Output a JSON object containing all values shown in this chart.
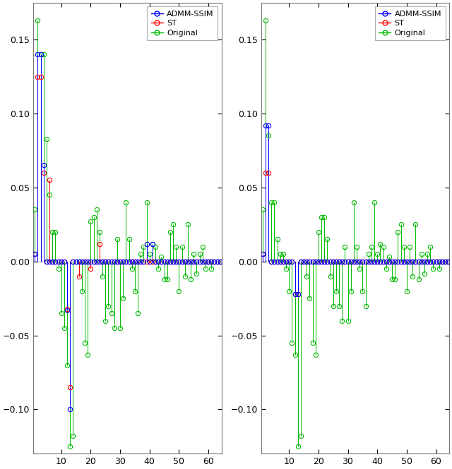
{
  "n_points": 64,
  "xlim": [
    0.5,
    64.5
  ],
  "ylim": [
    -0.13,
    0.175
  ],
  "xticks": [
    10,
    20,
    30,
    40,
    50,
    60
  ],
  "yticks": [
    -0.1,
    -0.05,
    0,
    0.05,
    0.1,
    0.15
  ],
  "colors": {
    "admm": "#0000FF",
    "st": "#FF0000",
    "original": "#00BB00"
  },
  "legend_labels": [
    "ADMM-SSIM",
    "ST",
    "Original"
  ],
  "subplot1": {
    "original": [
      0.035,
      0.163,
      0.14,
      0.14,
      0.083,
      0.045,
      0.02,
      0.02,
      -0.005,
      -0.035,
      -0.045,
      -0.07,
      -0.125,
      -0.118,
      0.0,
      0.0,
      -0.02,
      -0.055,
      -0.063,
      0.027,
      0.03,
      0.035,
      0.02,
      -0.01,
      -0.04,
      -0.03,
      -0.035,
      -0.045,
      0.015,
      -0.045,
      -0.025,
      0.04,
      0.015,
      -0.005,
      -0.02,
      -0.035,
      0.005,
      0.01,
      0.04,
      0.005,
      0.012,
      0.01,
      -0.005,
      0.003,
      -0.012,
      -0.012,
      0.02,
      0.025,
      0.01,
      -0.02,
      0.01,
      -0.01,
      0.025,
      -0.012,
      0.005,
      -0.008,
      0.005,
      0.01,
      -0.005,
      0.0,
      -0.005,
      0.0,
      0.0,
      0.0
    ],
    "admm": [
      0.005,
      0.14,
      0.14,
      0.065,
      0.0,
      0.0,
      0.0,
      0.0,
      0.0,
      0.0,
      0.0,
      -0.033,
      -0.1,
      0.0,
      0.0,
      0.0,
      0.0,
      0.0,
      0.0,
      0.0,
      0.0,
      0.0,
      0.0,
      0.0,
      0.0,
      0.0,
      0.0,
      0.0,
      0.0,
      0.0,
      0.0,
      0.0,
      0.0,
      0.0,
      0.0,
      0.0,
      0.0,
      0.0,
      0.012,
      0.0,
      0.012,
      0.0,
      0.0,
      0.0,
      0.0,
      0.0,
      0.0,
      0.0,
      0.0,
      0.0,
      0.0,
      0.0,
      0.0,
      0.0,
      0.0,
      0.0,
      0.0,
      0.0,
      0.0,
      0.0,
      0.0,
      0.0,
      0.0,
      0.0
    ],
    "st": [
      0.005,
      0.125,
      0.125,
      0.06,
      0.0,
      0.055,
      0.0,
      0.0,
      0.0,
      0.0,
      0.0,
      -0.032,
      -0.085,
      0.0,
      0.0,
      -0.01,
      0.0,
      0.0,
      0.0,
      -0.005,
      0.0,
      0.0,
      0.012,
      0.0,
      0.0,
      0.0,
      0.0,
      0.0,
      0.0,
      0.0,
      0.0,
      0.0,
      0.0,
      0.0,
      0.0,
      0.0,
      0.0,
      0.0,
      0.0,
      0.0,
      0.0,
      0.0,
      0.0,
      0.0,
      0.0,
      0.0,
      0.0,
      0.0,
      0.0,
      0.0,
      0.0,
      0.0,
      0.0,
      0.0,
      0.0,
      0.0,
      0.0,
      0.0,
      0.0,
      0.0,
      0.0,
      0.0,
      0.0,
      0.0
    ]
  },
  "subplot2": {
    "original": [
      0.035,
      0.163,
      0.085,
      0.04,
      0.04,
      0.015,
      0.005,
      0.005,
      -0.005,
      -0.02,
      -0.055,
      -0.063,
      -0.125,
      -0.118,
      0.0,
      -0.01,
      -0.025,
      -0.055,
      -0.063,
      0.02,
      0.03,
      0.03,
      0.015,
      -0.01,
      -0.03,
      -0.02,
      -0.03,
      -0.04,
      0.01,
      -0.04,
      -0.02,
      0.04,
      0.01,
      -0.005,
      -0.02,
      -0.03,
      0.005,
      0.01,
      0.04,
      0.005,
      0.012,
      0.01,
      -0.005,
      0.003,
      -0.012,
      -0.012,
      0.02,
      0.025,
      0.01,
      -0.02,
      0.01,
      -0.01,
      0.025,
      -0.012,
      0.005,
      -0.008,
      0.005,
      0.01,
      -0.005,
      0.0,
      -0.005,
      0.0,
      0.0,
      0.0
    ],
    "admm": [
      0.005,
      0.092,
      0.092,
      0.0,
      0.0,
      0.0,
      0.0,
      0.0,
      0.0,
      0.0,
      0.0,
      -0.022,
      -0.022,
      0.0,
      0.0,
      0.0,
      0.0,
      0.0,
      0.0,
      0.0,
      0.0,
      0.0,
      0.0,
      0.0,
      0.0,
      0.0,
      0.0,
      0.0,
      0.0,
      0.0,
      0.0,
      0.0,
      0.0,
      0.0,
      0.0,
      0.0,
      0.0,
      0.0,
      0.0,
      0.0,
      0.0,
      0.0,
      0.0,
      0.0,
      0.0,
      0.0,
      0.0,
      0.0,
      0.0,
      0.0,
      0.0,
      0.0,
      0.0,
      0.0,
      0.0,
      0.0,
      0.0,
      0.0,
      0.0,
      0.0,
      0.0,
      0.0,
      0.0,
      0.0
    ],
    "st": [
      0.005,
      0.06,
      0.06,
      0.0,
      0.0,
      0.0,
      0.0,
      0.0,
      0.0,
      0.0,
      0.0,
      -0.022,
      -0.022,
      0.0,
      0.0,
      0.0,
      0.0,
      0.0,
      0.0,
      0.0,
      0.0,
      0.0,
      0.0,
      0.0,
      0.0,
      0.0,
      0.0,
      0.0,
      0.0,
      0.0,
      0.0,
      0.0,
      0.0,
      0.0,
      0.0,
      0.0,
      0.0,
      0.0,
      0.0,
      0.0,
      0.0,
      0.0,
      0.0,
      0.0,
      0.0,
      0.0,
      0.0,
      0.0,
      0.0,
      0.0,
      0.0,
      0.0,
      0.0,
      0.0,
      0.0,
      0.0,
      0.0,
      0.0,
      0.0,
      0.0,
      0.0,
      0.0,
      0.0,
      0.0
    ]
  }
}
